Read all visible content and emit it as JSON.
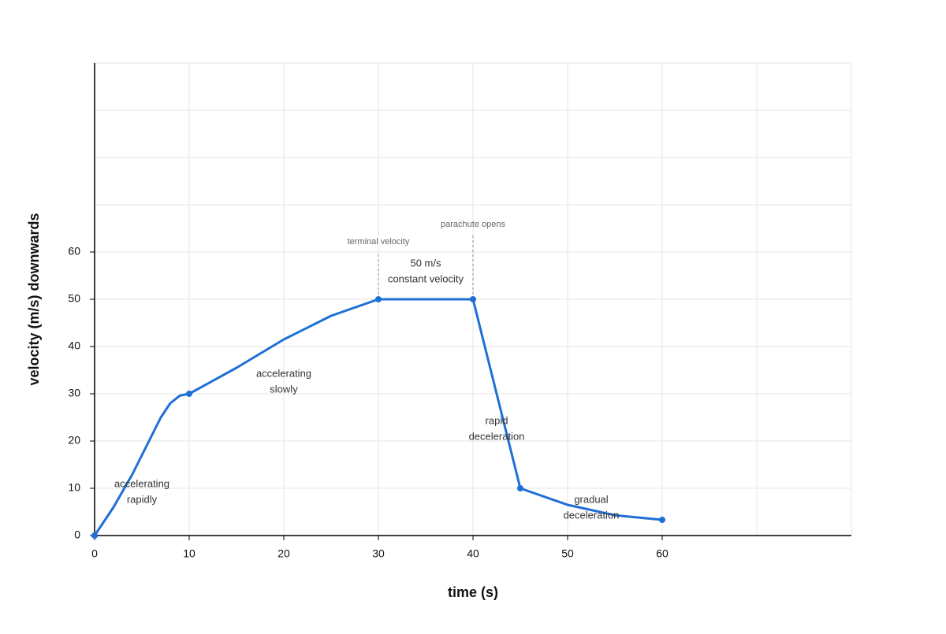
{
  "chart_data": {
    "type": "line",
    "x_label": "time (s)",
    "y_label": "velocity (m/s) downwards",
    "xlim": [
      0,
      80
    ],
    "ylim": [
      0,
      100
    ],
    "xticks": [
      0,
      10,
      20,
      30,
      40,
      50,
      60
    ],
    "yticks": [
      0,
      10,
      20,
      30,
      40,
      50,
      60
    ],
    "xgrid": [
      0,
      10,
      20,
      30,
      40,
      50,
      60,
      70,
      80
    ],
    "ygrid": [
      0,
      10,
      20,
      30,
      40,
      50,
      60,
      70,
      80,
      90,
      100
    ],
    "grid": true,
    "series": [
      {
        "color": "#1f6fd6",
        "markers": false,
        "x": [
          0,
          2,
          4,
          6,
          7,
          8,
          9,
          10,
          15,
          20,
          25,
          30,
          40,
          45,
          50,
          55,
          60
        ],
        "values": [
          0,
          6,
          13,
          21,
          25,
          28,
          29.6,
          30,
          35.5,
          41.5,
          46.5,
          50,
          50,
          10,
          6.5,
          4.3,
          3.33
        ]
      },
      {
        "color": "#1f6fd6",
        "markers": true,
        "x": [
          0,
          10,
          30,
          40,
          45,
          60
        ],
        "values": [
          0,
          30,
          50,
          50,
          10,
          3.33
        ]
      }
    ],
    "annotations": [
      {
        "lines": [
          "accelerating",
          "rapidly"
        ]
      },
      {
        "lines": [
          "accelerating",
          "slowly"
        ]
      },
      {
        "lines": [
          "50 m/s",
          "constant velocity"
        ]
      },
      {
        "lines": [
          "rapid",
          "deceleration"
        ]
      },
      {
        "lines": [
          "gradual",
          "deceleration"
        ]
      }
    ],
    "markers_text": [
      {
        "text": "terminal velocity",
        "x": 30
      },
      {
        "text": "parachute opens",
        "x": 40
      }
    ]
  }
}
